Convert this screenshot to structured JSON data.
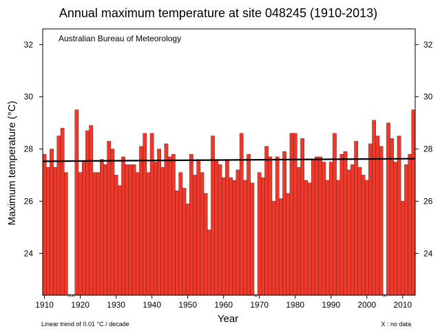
{
  "chart_data": {
    "type": "bar",
    "title": "Annual maximum temperature at site 048245 (1910-2013)",
    "credit": "Australian Bureau of Meteorology",
    "xlabel": "Year",
    "ylabel": "Maximum temperature  (°C)",
    "trend_note": "Linear  trend of 0.01  °C / decade",
    "missing_note": "X : no  data",
    "missing_marker": "×",
    "xlim": [
      1909.5,
      2013.5
    ],
    "ylim": [
      22.4,
      32.6
    ],
    "baseline": 22.4,
    "x_ticks": [
      1910,
      1920,
      1930,
      1940,
      1950,
      1960,
      1970,
      1980,
      1990,
      2000,
      2010
    ],
    "y_ticks": [
      24,
      26,
      28,
      30,
      32
    ],
    "bar_color": "#ee3a2d",
    "trend_line": {
      "x": [
        1910,
        2013
      ],
      "y": [
        27.53,
        27.63
      ]
    },
    "x": [
      1910,
      1911,
      1912,
      1913,
      1914,
      1915,
      1916,
      1917,
      1918,
      1919,
      1920,
      1921,
      1922,
      1923,
      1924,
      1925,
      1926,
      1927,
      1928,
      1929,
      1930,
      1931,
      1932,
      1933,
      1934,
      1935,
      1936,
      1937,
      1938,
      1939,
      1940,
      1941,
      1942,
      1943,
      1944,
      1945,
      1946,
      1947,
      1948,
      1949,
      1950,
      1951,
      1952,
      1953,
      1954,
      1955,
      1956,
      1957,
      1958,
      1959,
      1960,
      1961,
      1962,
      1963,
      1964,
      1965,
      1966,
      1967,
      1968,
      1969,
      1970,
      1971,
      1972,
      1973,
      1974,
      1975,
      1976,
      1977,
      1978,
      1979,
      1980,
      1981,
      1982,
      1983,
      1984,
      1985,
      1986,
      1987,
      1988,
      1989,
      1990,
      1991,
      1992,
      1993,
      1994,
      1995,
      1996,
      1997,
      1998,
      1999,
      2000,
      2001,
      2002,
      2003,
      2004,
      2005,
      2006,
      2007,
      2008,
      2009,
      2010,
      2011,
      2012,
      2013
    ],
    "values": [
      27.8,
      27.3,
      28.0,
      27.3,
      28.5,
      28.8,
      27.1,
      null,
      null,
      29.5,
      27.1,
      27.5,
      28.7,
      28.9,
      27.1,
      27.1,
      27.6,
      27.4,
      28.3,
      28.0,
      27.0,
      26.6,
      27.7,
      27.4,
      27.4,
      27.4,
      27.1,
      28.1,
      28.6,
      27.1,
      28.6,
      27.5,
      28.0,
      27.3,
      28.2,
      27.7,
      27.8,
      26.4,
      27.1,
      26.5,
      25.9,
      27.8,
      27.0,
      27.6,
      27.1,
      26.3,
      24.9,
      28.5,
      27.6,
      27.4,
      26.9,
      27.6,
      26.9,
      26.8,
      27.2,
      28.6,
      26.8,
      27.8,
      26.7,
      null,
      27.1,
      26.9,
      28.1,
      27.7,
      26.0,
      27.7,
      26.1,
      27.9,
      26.3,
      28.6,
      28.6,
      27.3,
      28.4,
      26.8,
      26.7,
      27.6,
      27.7,
      27.7,
      27.5,
      26.8,
      27.5,
      28.6,
      26.8,
      27.8,
      27.9,
      27.2,
      27.4,
      28.3,
      27.3,
      27.0,
      26.8,
      28.2,
      29.1,
      28.5,
      28.1,
      null,
      29.0,
      28.4,
      27.5,
      28.5,
      26.0,
      27.4,
      27.8,
      29.5
    ]
  }
}
